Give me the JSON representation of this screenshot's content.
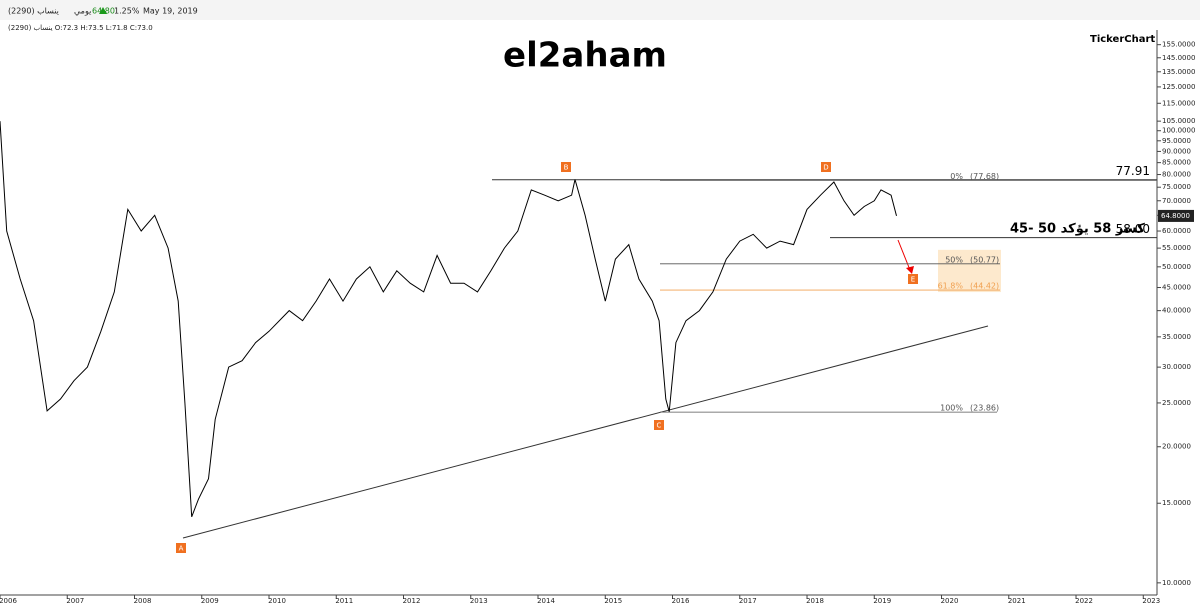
{
  "header": {
    "symbol": "ينساب (2290)",
    "period": "يومي",
    "price": "64.80",
    "change": "1.25%",
    "date": "May 19, 2019",
    "ohlc": "ينساب (2290)  O:72.3  H:73.5  L:71.8  C:73.0",
    "brand": "TickerChart"
  },
  "chart_data": {
    "type": "line",
    "title": "el2aham",
    "log_scale": true,
    "color": "#000000",
    "x": [
      2006.0,
      2006.1,
      2006.3,
      2006.5,
      2006.7,
      2006.9,
      2007.1,
      2007.3,
      2007.5,
      2007.7,
      2007.9,
      2008.1,
      2008.3,
      2008.5,
      2008.65,
      2008.75,
      2008.85,
      2008.95,
      2009.1,
      2009.2,
      2009.4,
      2009.6,
      2009.8,
      2010.0,
      2010.3,
      2010.5,
      2010.7,
      2010.9,
      2011.1,
      2011.3,
      2011.5,
      2011.7,
      2011.9,
      2012.1,
      2012.3,
      2012.5,
      2012.7,
      2012.9,
      2013.1,
      2013.3,
      2013.5,
      2013.7,
      2013.9,
      2014.1,
      2014.3,
      2014.5,
      2014.55,
      2014.7,
      2014.85,
      2015.0,
      2015.15,
      2015.35,
      2015.5,
      2015.7,
      2015.8,
      2015.9,
      2015.95,
      2016.05,
      2016.2,
      2016.4,
      2016.6,
      2016.8,
      2017.0,
      2017.2,
      2017.4,
      2017.6,
      2017.8,
      2018.0,
      2018.2,
      2018.4,
      2018.55,
      2018.7,
      2018.85,
      2019.0,
      2019.1,
      2019.25,
      2019.33
    ],
    "series": [
      {
        "name": "ينساب (2290)",
        "values": [
          105,
          60,
          47,
          38,
          24,
          25.5,
          28,
          30,
          36,
          44,
          67,
          60,
          65,
          55,
          42,
          25,
          14,
          15.3,
          17,
          23,
          30,
          31,
          34,
          36,
          40,
          38,
          42,
          47,
          42,
          47,
          50,
          44,
          49,
          46,
          44,
          53,
          46,
          46,
          44,
          49,
          55,
          60,
          74,
          72,
          70,
          72,
          78,
          65,
          52,
          42,
          52,
          56,
          47,
          42,
          38,
          25.5,
          23.9,
          34,
          38,
          40,
          44,
          52,
          57,
          59,
          55,
          57,
          56,
          67,
          72,
          77,
          70,
          65,
          68,
          70,
          74,
          72,
          64.8
        ]
      }
    ],
    "xlim": [
      2006,
      2023.1
    ],
    "xticks": [
      2006,
      2007,
      2008,
      2009,
      2010,
      2011,
      2012,
      2013,
      2014,
      2015,
      2016,
      2017,
      2018,
      2019,
      2020,
      2021,
      2022,
      2023
    ],
    "ylim": [
      9.4,
      162
    ],
    "yticks": [
      {
        "value": 10,
        "label": "10.0000"
      },
      {
        "value": 15,
        "label": "15.0000"
      },
      {
        "value": 20,
        "label": "20.0000"
      },
      {
        "value": 25,
        "label": "25.0000"
      },
      {
        "value": 30,
        "label": "30.0000"
      },
      {
        "value": 35,
        "label": "35.0000"
      },
      {
        "value": 40,
        "label": "40.0000"
      },
      {
        "value": 45,
        "label": "45.0000"
      },
      {
        "value": 50,
        "label": "50.0000"
      },
      {
        "value": 55,
        "label": "55.0000"
      },
      {
        "value": 60,
        "label": "60.0000"
      },
      {
        "value": 65,
        "label": "65.0000"
      },
      {
        "value": 70,
        "label": "70.0000"
      },
      {
        "value": 75,
        "label": "75.0000"
      },
      {
        "value": 80,
        "label": "80.0000"
      },
      {
        "value": 85,
        "label": "85.0000"
      },
      {
        "value": 90,
        "label": "90.0000"
      },
      {
        "value": 95,
        "label": "95.0000"
      },
      {
        "value": 100,
        "label": "100.0000"
      },
      {
        "value": 105,
        "label": "105.0000"
      },
      {
        "value": 115,
        "label": "115.0000"
      },
      {
        "value": 125,
        "label": "125.0000"
      },
      {
        "value": 135,
        "label": "135.0000"
      },
      {
        "value": 145,
        "label": "145.0000"
      },
      {
        "value": 155,
        "label": "155.0000"
      }
    ],
    "last_price": {
      "value": 64.8,
      "label": "64.8000"
    },
    "fib_levels": [
      {
        "name": "0%",
        "value": 77.68,
        "label": "(77.68)"
      },
      {
        "name": "50%",
        "value": 50.77,
        "label": "(50.77)"
      },
      {
        "name": "61.8%",
        "value": 44.42,
        "label": "(44.42)"
      },
      {
        "name": "100%",
        "value": 23.86,
        "label": "(23.86)"
      }
    ],
    "levels": [
      {
        "value": 77.91,
        "label": "77.91"
      },
      {
        "value": 58,
        "label": "58.00"
      }
    ],
    "annotations": {
      "points": [
        "A",
        "B",
        "C",
        "D",
        "E"
      ],
      "note": "كسر 58 يؤكد 50 -45"
    }
  }
}
